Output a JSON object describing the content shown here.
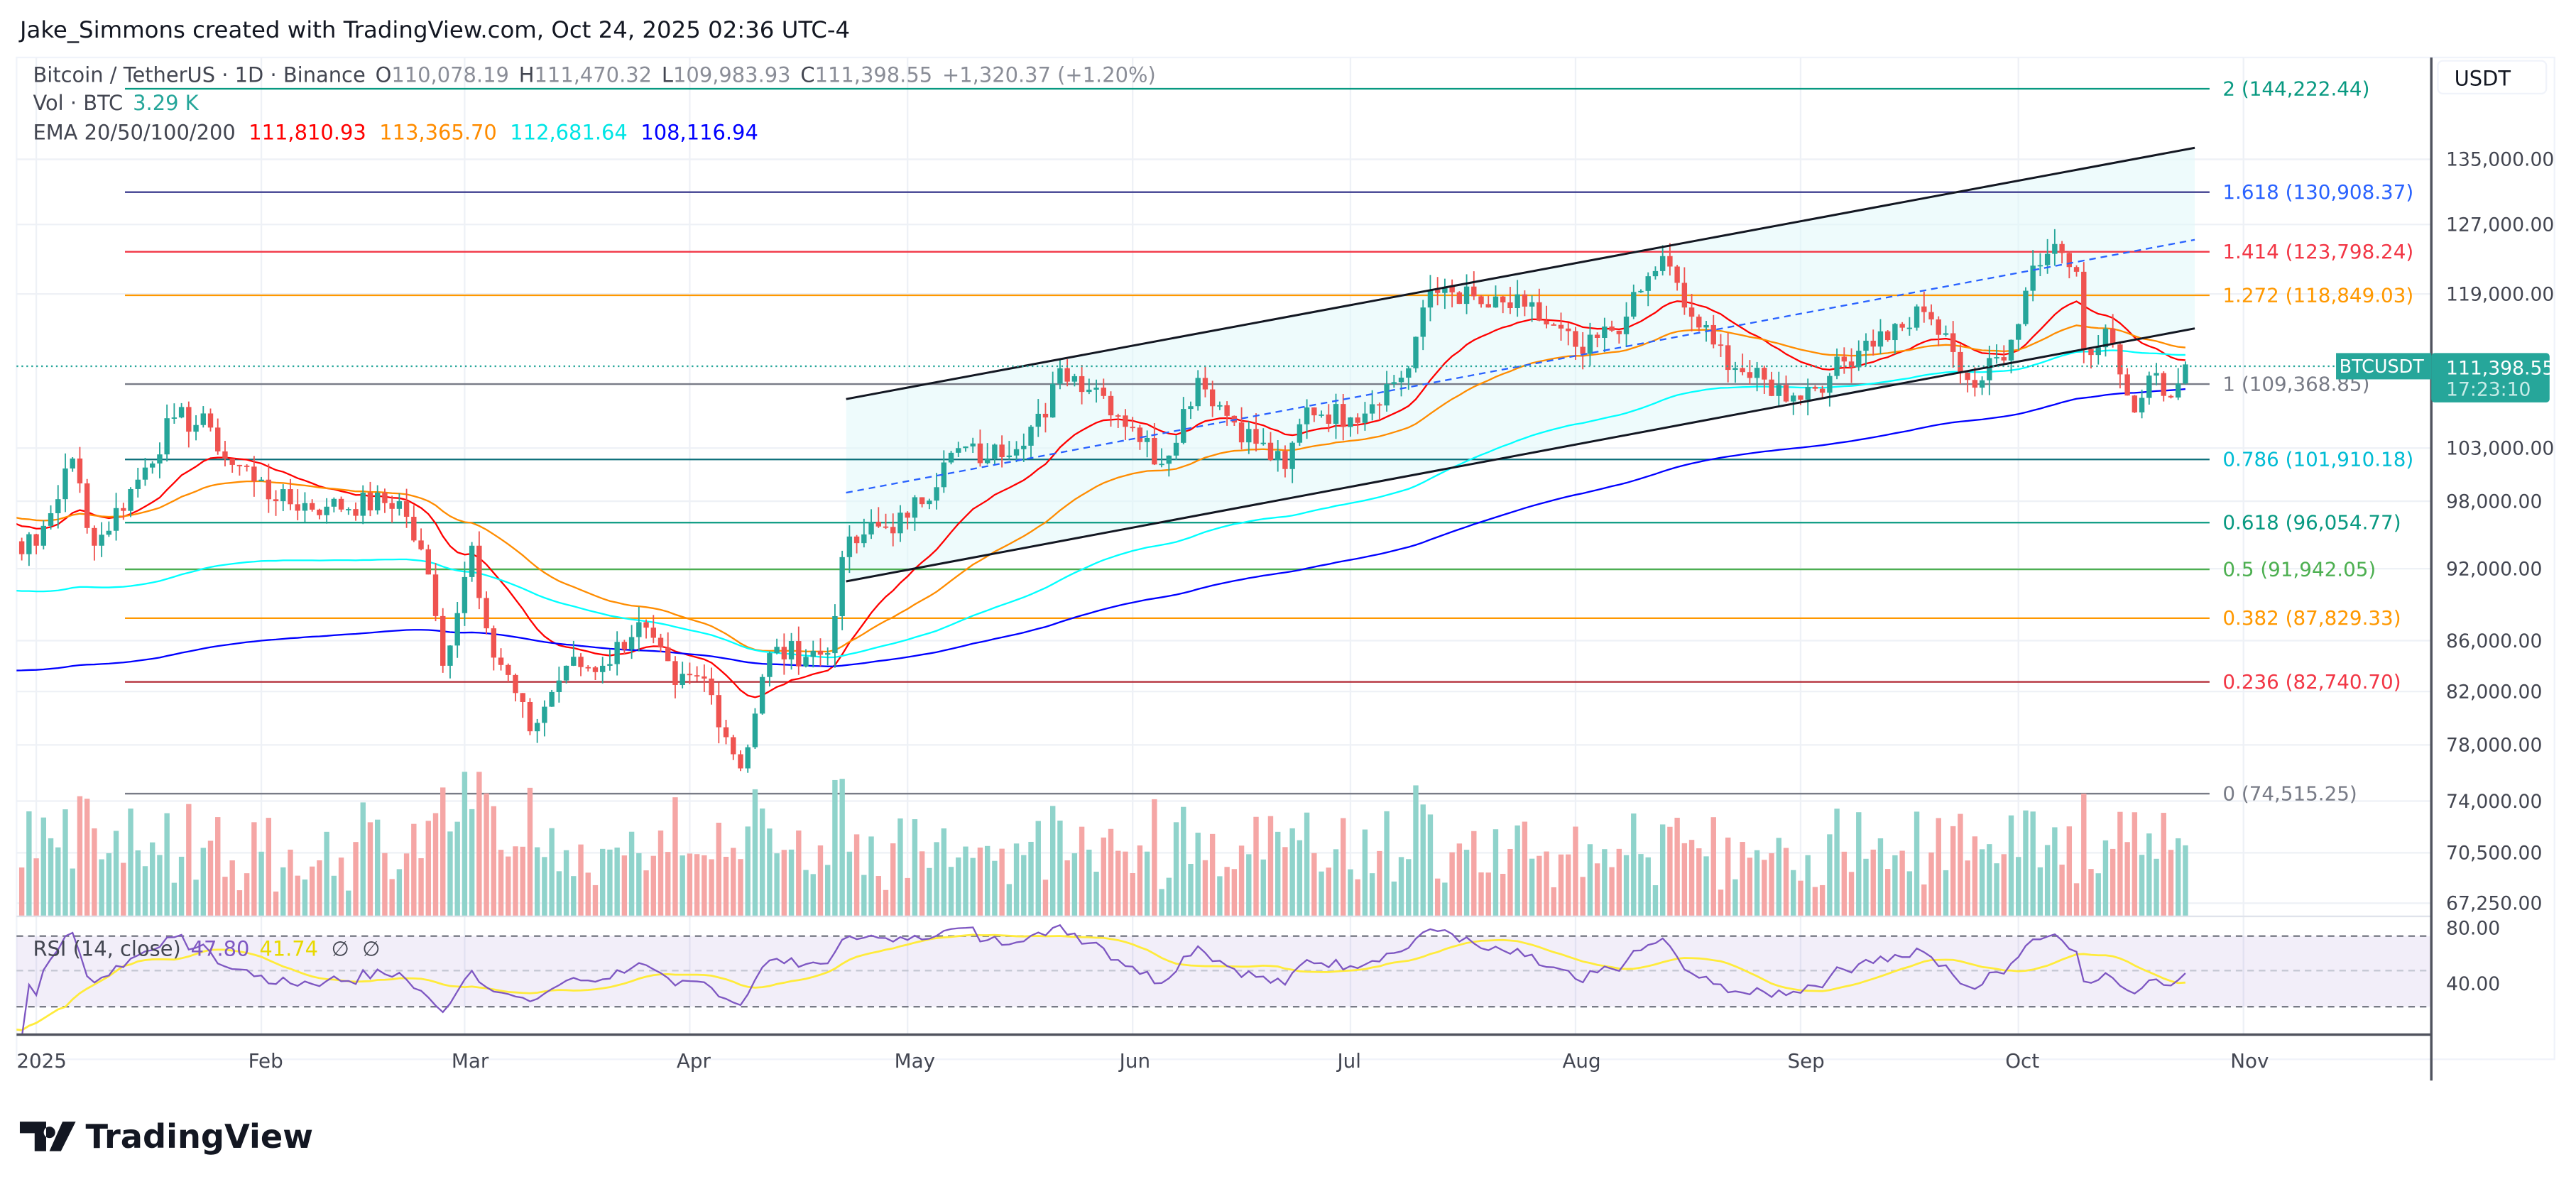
{
  "header": {
    "credit": "Jake_Simmons created with TradingView.com, Oct 24, 2025 02:36 UTC-4"
  },
  "legend": {
    "symbol": "Bitcoin / TetherUS · 1D · Binance",
    "o_label": "O",
    "o": "110,078.19",
    "h_label": "H",
    "h": "111,470.32",
    "l_label": "L",
    "l": "109,983.93",
    "c_label": "C",
    "c": "111,398.55",
    "change": "+1,320.37 (+1.20%)",
    "vol_label": "Vol · BTC",
    "vol": "3.29 K",
    "ema_label": "EMA 20/50/100/200",
    "ema_values": [
      "111,810.93",
      "113,365.70",
      "112,681.64",
      "108,116.94"
    ],
    "rsi_label": "RSI (14, close)",
    "rsi": "47.80",
    "rsi_ma": "41.74",
    "rsi_extra1": "∅",
    "rsi_extra2": "∅"
  },
  "price_axis": {
    "currency": "USDT",
    "last_symbol": "BTCUSDT",
    "last_price": "111,398.55",
    "countdown": "17:23:10"
  },
  "logo": {
    "text": "TradingView"
  },
  "colors": {
    "up": "#26a69a",
    "down": "#ef5350",
    "ema20": "#ff0000",
    "ema50": "#ff8c00",
    "ema100": "#00ffff",
    "ema200": "#0000ff",
    "rsi": "#7e57c2",
    "rsi_ma": "#ffeb3b",
    "channel_fill": "#e0f7fa"
  },
  "chart_data": {
    "type": "candlestick",
    "scale": "log",
    "ylim": [
      67250,
      150000
    ],
    "y_ticks": [
      "135,000.00",
      "127,000.00",
      "119,000.00",
      "103,000.00",
      "98,000.00",
      "92,000.00",
      "86,000.00",
      "82,000.00",
      "78,000.00",
      "74,000.00",
      "70,500.00",
      "67,250.00"
    ],
    "y_tick_values": [
      135000,
      127000,
      119000,
      103000,
      98000,
      92000,
      86000,
      82000,
      78000,
      74000,
      70500,
      67250
    ],
    "x_ticks": [
      {
        "label": "2025",
        "date": "2025-01-01"
      },
      {
        "label": "Feb",
        "date": "2025-02-01"
      },
      {
        "label": "Mar",
        "date": "2025-03-01"
      },
      {
        "label": "Apr",
        "date": "2025-04-01"
      },
      {
        "label": "May",
        "date": "2025-05-01"
      },
      {
        "label": "Jun",
        "date": "2025-06-01"
      },
      {
        "label": "Jul",
        "date": "2025-07-01"
      },
      {
        "label": "Aug",
        "date": "2025-08-01"
      },
      {
        "label": "Sep",
        "date": "2025-09-01"
      },
      {
        "label": "Oct",
        "date": "2025-10-01"
      },
      {
        "label": "Nov",
        "date": "2025-11-01"
      }
    ],
    "rsi_ticks": [
      "80.00",
      "40.00"
    ],
    "closes": [
      [
        "2024-12-22",
        97000
      ],
      [
        "2024-12-28",
        94500
      ],
      [
        "2025-01-01",
        94000
      ],
      [
        "2025-01-06",
        102000
      ],
      [
        "2025-01-09",
        94000
      ],
      [
        "2025-01-15",
        100000
      ],
      [
        "2025-01-20",
        106000
      ],
      [
        "2025-01-25",
        105000
      ],
      [
        "2025-01-27",
        102000
      ],
      [
        "2025-02-01",
        100000
      ],
      [
        "2025-02-03",
        98000
      ],
      [
        "2025-02-10",
        97500
      ],
      [
        "2025-02-20",
        98000
      ],
      [
        "2025-02-24",
        91500
      ],
      [
        "2025-02-26",
        84000
      ],
      [
        "2025-03-02",
        94000
      ],
      [
        "2025-03-04",
        87000
      ],
      [
        "2025-03-10",
        79000
      ],
      [
        "2025-03-15",
        84000
      ],
      [
        "2025-03-20",
        84000
      ],
      [
        "2025-03-25",
        87500
      ],
      [
        "2025-03-30",
        82500
      ],
      [
        "2025-04-03",
        83000
      ],
      [
        "2025-04-08",
        76300
      ],
      [
        "2025-04-12",
        85000
      ],
      [
        "2025-04-20",
        85000
      ],
      [
        "2025-04-22",
        93000
      ],
      [
        "2025-04-25",
        95000
      ],
      [
        "2025-05-01",
        96500
      ],
      [
        "2025-05-08",
        103000
      ],
      [
        "2025-05-12",
        102000
      ],
      [
        "2025-05-20",
        106000
      ],
      [
        "2025-05-22",
        111000
      ],
      [
        "2025-05-27",
        109000
      ],
      [
        "2025-06-01",
        105000
      ],
      [
        "2025-06-05",
        101500
      ],
      [
        "2025-06-10",
        110000
      ],
      [
        "2025-06-15",
        105500
      ],
      [
        "2025-06-22",
        101000
      ],
      [
        "2025-06-25",
        107000
      ],
      [
        "2025-07-01",
        106000
      ],
      [
        "2025-07-09",
        111000
      ],
      [
        "2025-07-11",
        117500
      ],
      [
        "2025-07-14",
        119800
      ],
      [
        "2025-07-20",
        117500
      ],
      [
        "2025-07-25",
        117600
      ],
      [
        "2025-08-02",
        112500
      ],
      [
        "2025-08-08",
        116500
      ],
      [
        "2025-08-13",
        123300
      ],
      [
        "2025-08-16",
        117500
      ],
      [
        "2025-08-20",
        113500
      ],
      [
        "2025-08-25",
        110000
      ],
      [
        "2025-08-31",
        108200
      ],
      [
        "2025-09-05",
        110200
      ],
      [
        "2025-09-10",
        113900
      ],
      [
        "2025-09-15",
        115300
      ],
      [
        "2025-09-18",
        117000
      ],
      [
        "2025-09-22",
        112700
      ],
      [
        "2025-09-25",
        109000
      ],
      [
        "2025-09-30",
        114000
      ],
      [
        "2025-10-03",
        122200
      ],
      [
        "2025-10-06",
        124700
      ],
      [
        "2025-10-09",
        121500
      ],
      [
        "2025-10-10",
        113000
      ],
      [
        "2025-10-13",
        115200
      ],
      [
        "2025-10-16",
        108200
      ],
      [
        "2025-10-17",
        106500
      ],
      [
        "2025-10-20",
        110500
      ],
      [
        "2025-10-22",
        108000
      ],
      [
        "2025-10-24",
        111398.55
      ]
    ],
    "fib_levels": [
      {
        "label": "2 (144,222.44)",
        "value": 144222.44,
        "color": "#089981"
      },
      {
        "label": "1.618 (130,908.37)",
        "value": 130908.37,
        "color": "#2962ff",
        "line": "#3f3f8f"
      },
      {
        "label": "1.414 (123,798.24)",
        "value": 123798.24,
        "color": "#f23645"
      },
      {
        "label": "1.272 (118,849.03)",
        "value": 118849.03,
        "color": "#ff9800"
      },
      {
        "label": "1 (109,368.85)",
        "value": 109368.85,
        "color": "#787b86"
      },
      {
        "label": "0.786 (101,910.18)",
        "value": 101910.18,
        "color": "#00bcd4",
        "line": "#0b6f7a"
      },
      {
        "label": "0.618 (96,054.77)",
        "value": 96054.77,
        "color": "#089981"
      },
      {
        "label": "0.5 (91,942.05)",
        "value": 91942.05,
        "color": "#4caf50"
      },
      {
        "label": "0.382 (87,829.33)",
        "value": 87829.33,
        "color": "#ff9800"
      },
      {
        "label": "0.236 (82,740.70)",
        "value": 82740.7,
        "color": "#f23645",
        "line": "#b22833"
      },
      {
        "label": "0 (74,515.25)",
        "value": 74515.25,
        "color": "#787b86"
      }
    ]
  }
}
